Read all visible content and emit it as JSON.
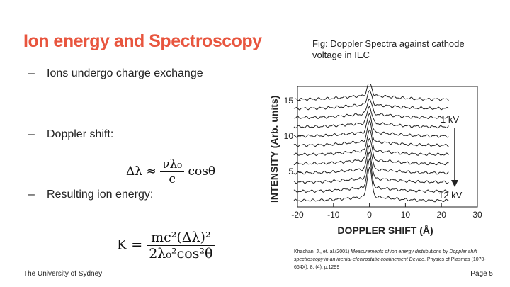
{
  "slide": {
    "title": "Ion energy and Spectroscopy",
    "title_color": "#e8553e",
    "bullets": [
      "Ions undergo charge exchange",
      "Doppler shift:",
      "Resulting ion energy:"
    ],
    "dash": "–"
  },
  "figure": {
    "caption": "Fig: Doppler Spectra against cathode voltage in IEC",
    "y_axis_label": "INTENSITY (Arb. units)",
    "x_axis_label": "DOPPLER SHIFT (Å)",
    "annotation_top": "1 kV",
    "annotation_bottom": "12 kV"
  },
  "chart_data": {
    "type": "line",
    "xlabel": "DOPPLER SHIFT (Å)",
    "ylabel": "INTENSITY (Arb. units)",
    "xlim": [
      -20,
      30
    ],
    "ylim": [
      0,
      17
    ],
    "x_ticks": [
      -20,
      -10,
      0,
      10,
      20,
      30
    ],
    "y_ticks": [
      5,
      10,
      15
    ],
    "series_count": 12,
    "series_offsets": [
      0.9,
      2.2,
      3.5,
      4.8,
      6.1,
      7.4,
      8.7,
      10.0,
      11.3,
      12.6,
      13.9,
      15.2
    ],
    "peak_heights": [
      4.2,
      3.9,
      3.6,
      3.4,
      3.2,
      3.0,
      2.8,
      2.6,
      2.4,
      2.2,
      2.0,
      1.8
    ],
    "colors": {
      "line": "#222222"
    }
  },
  "formulas": {
    "doppler": {
      "lhs": "Δλ ≈",
      "num": "νλ₀",
      "den": "c",
      "tail": "cosθ"
    },
    "energy": {
      "lhs": "K =",
      "num": "mc²(Δλ)²",
      "den": "2λ₀²cos²θ"
    }
  },
  "citation": {
    "authors": "Khachan, J., et. al.(2001)",
    "title": "Measurements of ion energy distributions by Doppler shift spectroscopy in an inertial-electrostatic confinement Device",
    "journal": ". Physics of Plasmas (1070-664X), 8, (4), p.1299"
  },
  "footer": {
    "institution": "The University of Sydney",
    "page": "Page 5"
  }
}
